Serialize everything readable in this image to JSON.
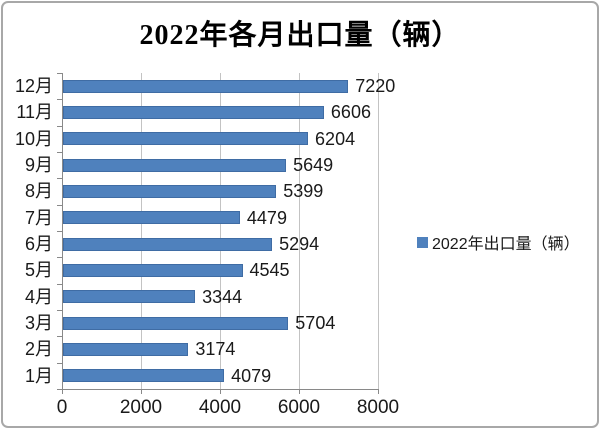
{
  "title": "2022年各月出口量（辆）",
  "legend": {
    "label": "2022年出口量（辆）",
    "marker": "blue-square"
  },
  "colors": {
    "bar_fill": "#4f81bd",
    "bar_border": "#3f6ca4",
    "gridline": "#c3c3c3",
    "axis_line": "#898989",
    "label_text": "#1a1a1a",
    "title_text": "#000000",
    "figure_border": "#a8a8a8"
  },
  "chart_data": {
    "type": "bar",
    "orientation": "horizontal",
    "title": "2022年各月出口量（辆）",
    "legend_entries": [
      "2022年出口量（辆）"
    ],
    "legend_position": "right",
    "categories": [
      "12月",
      "11月",
      "10月",
      "9月",
      "8月",
      "7月",
      "6月",
      "5月",
      "4月",
      "3月",
      "2月",
      "1月"
    ],
    "category_order": "top-to-bottom as displayed",
    "values": [
      7220,
      6606,
      6204,
      5649,
      5399,
      4479,
      5294,
      4545,
      3344,
      5704,
      3174,
      4079
    ],
    "data_labels_shown": true,
    "x_ticks": [
      "0",
      "2000",
      "4000",
      "6000",
      "8000"
    ],
    "xlim": [
      0,
      8000
    ],
    "gridlines": "vertical",
    "xlabel": "",
    "ylabel": ""
  }
}
